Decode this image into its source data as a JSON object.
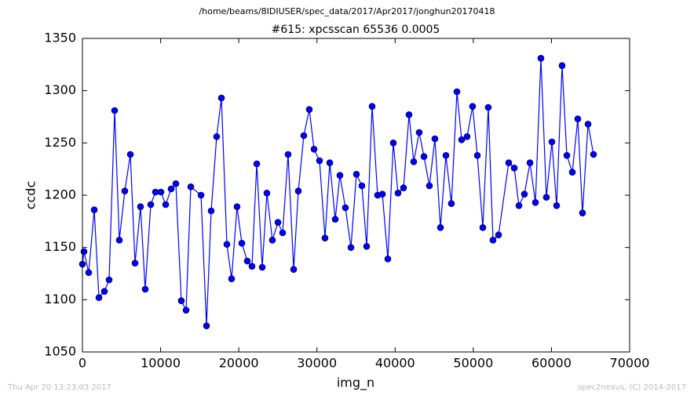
{
  "chart_data": {
    "type": "line",
    "suptitle": "/home/beams/8IDIUSER/spec_data/2017/Apr2017/jonghun20170418",
    "title": "#615: xpcsscan 65536 0.0005",
    "x_label": "img_n",
    "y_label": "ccdc",
    "footer_left": "Thu Apr 20 13:23:03 2017",
    "footer_right": "spec2nexus, (C) 2014-2017",
    "x": [
      0,
      200,
      800,
      1510,
      2110,
      2810,
      3410,
      4120,
      4720,
      5420,
      6130,
      6730,
      7430,
      8030,
      8740,
      9340,
      10040,
      10650,
      11350,
      11950,
      12650,
      13260,
      13860,
      15170,
      15870,
      16470,
      17170,
      17780,
      18480,
      19080,
      19780,
      20390,
      21090,
      21690,
      22300,
      23000,
      23600,
      24300,
      25010,
      25610,
      26310,
      27020,
      27620,
      28320,
      29020,
      29630,
      30330,
      31030,
      31640,
      32340,
      32940,
      33640,
      34350,
      35050,
      35750,
      36360,
      37060,
      37760,
      38370,
      39070,
      39770,
      40370,
      41080,
      41780,
      42380,
      43080,
      43690,
      44390,
      45090,
      45800,
      46500,
      47200,
      47910,
      48510,
      49210,
      49910,
      50520,
      51220,
      51920,
      52520,
      53230,
      54530,
      55240,
      55840,
      56540,
      57250,
      57950,
      58650,
      59350,
      60060,
      60660,
      61360,
      61970,
      62670,
      63370,
      63970,
      64680,
      65380
    ],
    "series": [
      {
        "name": "ccdc",
        "color": "#0000ff",
        "values": [
          1134,
          1146,
          1126,
          1186,
          1102,
          1108,
          1119,
          1281,
          1157,
          1204,
          1239,
          1135,
          1189,
          1110,
          1191,
          1203,
          1203,
          1191,
          1206,
          1211,
          1099,
          1090,
          1208,
          1200,
          1075,
          1185,
          1256,
          1293,
          1153,
          1120,
          1189,
          1154,
          1137,
          1132,
          1230,
          1131,
          1202,
          1157,
          1174,
          1164,
          1239,
          1129,
          1204,
          1257,
          1282,
          1244,
          1233,
          1159,
          1231,
          1177,
          1219,
          1188,
          1150,
          1220,
          1209,
          1151,
          1285,
          1200,
          1201,
          1139,
          1250,
          1202,
          1207,
          1277,
          1232,
          1260,
          1237,
          1209,
          1254,
          1169,
          1238,
          1192,
          1299,
          1253,
          1256,
          1285,
          1238,
          1169,
          1284,
          1157,
          1162,
          1231,
          1226,
          1190,
          1201,
          1231,
          1193,
          1331,
          1198,
          1251,
          1190,
          1324,
          1238,
          1222,
          1273,
          1183,
          1268,
          1239
        ]
      }
    ],
    "xlim": [
      0,
      70000
    ],
    "xticks": [
      0,
      10000,
      20000,
      30000,
      40000,
      50000,
      60000,
      70000
    ],
    "ylim": [
      1050,
      1350
    ],
    "yticks": [
      1050,
      1100,
      1150,
      1200,
      1250,
      1300,
      1350
    ],
    "grid": false
  }
}
